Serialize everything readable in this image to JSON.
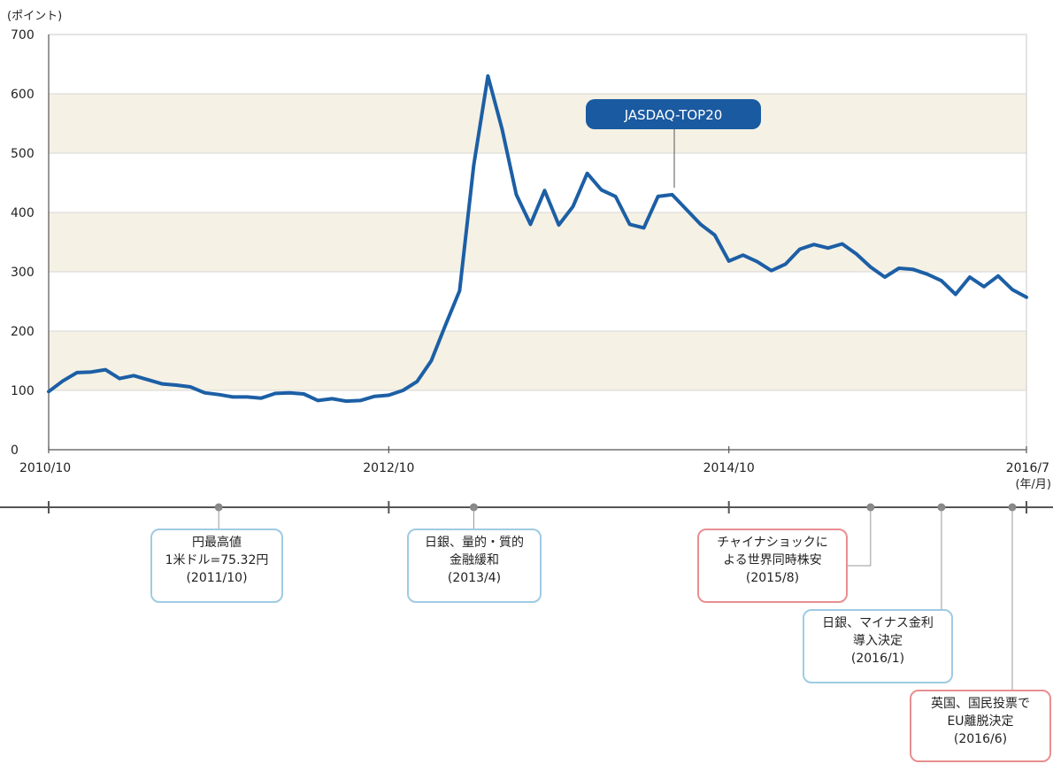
{
  "chart_data": {
    "type": "line",
    "ylabel": "(ポイント)",
    "xunit": "(年/月)",
    "ylim": [
      0,
      700
    ],
    "yticks": [
      "0",
      "100",
      "200",
      "300",
      "400",
      "500",
      "600",
      "700"
    ],
    "xticks": [
      "2010/10",
      "2012/10",
      "2014/10",
      "2016/7"
    ],
    "series": [
      {
        "name": "JASDAQ-TOP20",
        "x": [
          "2010/10",
          "2010/11",
          "2010/12",
          "2011/1",
          "2011/2",
          "2011/3",
          "2011/4",
          "2011/5",
          "2011/6",
          "2011/7",
          "2011/8",
          "2011/9",
          "2011/10",
          "2011/11",
          "2011/12",
          "2012/1",
          "2012/2",
          "2012/3",
          "2012/4",
          "2012/5",
          "2012/6",
          "2012/7",
          "2012/8",
          "2012/9",
          "2012/10",
          "2012/11",
          "2012/12",
          "2013/1",
          "2013/2",
          "2013/3",
          "2013/4",
          "2013/5",
          "2013/6",
          "2013/7",
          "2013/8",
          "2013/9",
          "2013/10",
          "2013/11",
          "2013/12",
          "2014/1",
          "2014/2",
          "2014/3",
          "2014/4",
          "2014/5",
          "2014/6",
          "2014/7",
          "2014/8",
          "2014/9",
          "2014/10",
          "2014/11",
          "2014/12",
          "2015/1",
          "2015/2",
          "2015/3",
          "2015/4",
          "2015/5",
          "2015/6",
          "2015/7",
          "2015/8",
          "2015/9",
          "2015/10",
          "2015/11",
          "2015/12",
          "2016/1",
          "2016/2",
          "2016/3",
          "2016/4",
          "2016/5",
          "2016/6",
          "2016/7"
        ],
        "values": [
          98,
          116,
          130,
          131,
          135,
          120,
          125,
          118,
          111,
          109,
          106,
          96,
          93,
          89,
          89,
          87,
          95,
          96,
          94,
          83,
          86,
          82,
          83,
          90,
          92,
          100,
          115,
          150,
          210,
          268,
          480,
          630,
          540,
          430,
          380,
          437,
          379,
          410,
          466,
          438,
          427,
          380,
          374,
          427,
          430,
          405,
          380,
          362,
          318,
          328,
          317,
          302,
          313,
          338,
          346,
          340,
          347,
          330,
          308,
          291,
          306,
          304,
          296,
          285,
          262,
          291,
          275,
          293,
          270,
          257
        ]
      }
    ]
  },
  "events": [
    {
      "lines": [
        "円最高値",
        "1米ドル=75.32円",
        "(2011/10)"
      ],
      "color": "#9fcbe3"
    },
    {
      "lines": [
        "日銀、量的・質的",
        "金融緩和",
        "(2013/4)"
      ],
      "color": "#9fcbe3"
    },
    {
      "lines": [
        "チャイナショックに",
        "よる世界同時株安",
        "(2015/8)"
      ],
      "color": "#e88f90"
    },
    {
      "lines": [
        "日銀、マイナス金利",
        "導入決定",
        "(2016/1)"
      ],
      "color": "#9fcbe3"
    },
    {
      "lines": [
        "英国、国民投票で",
        "EU離脱決定",
        "(2016/6)"
      ],
      "color": "#e88f90"
    }
  ],
  "colors": {
    "line": "#1c5fa5",
    "label_bg": "#1a5aa0",
    "band": "#f5f1e4",
    "timeline": "#555555",
    "event_dot": "#888888",
    "box_blue": "#9fcbe3",
    "box_red": "#e88f90"
  }
}
